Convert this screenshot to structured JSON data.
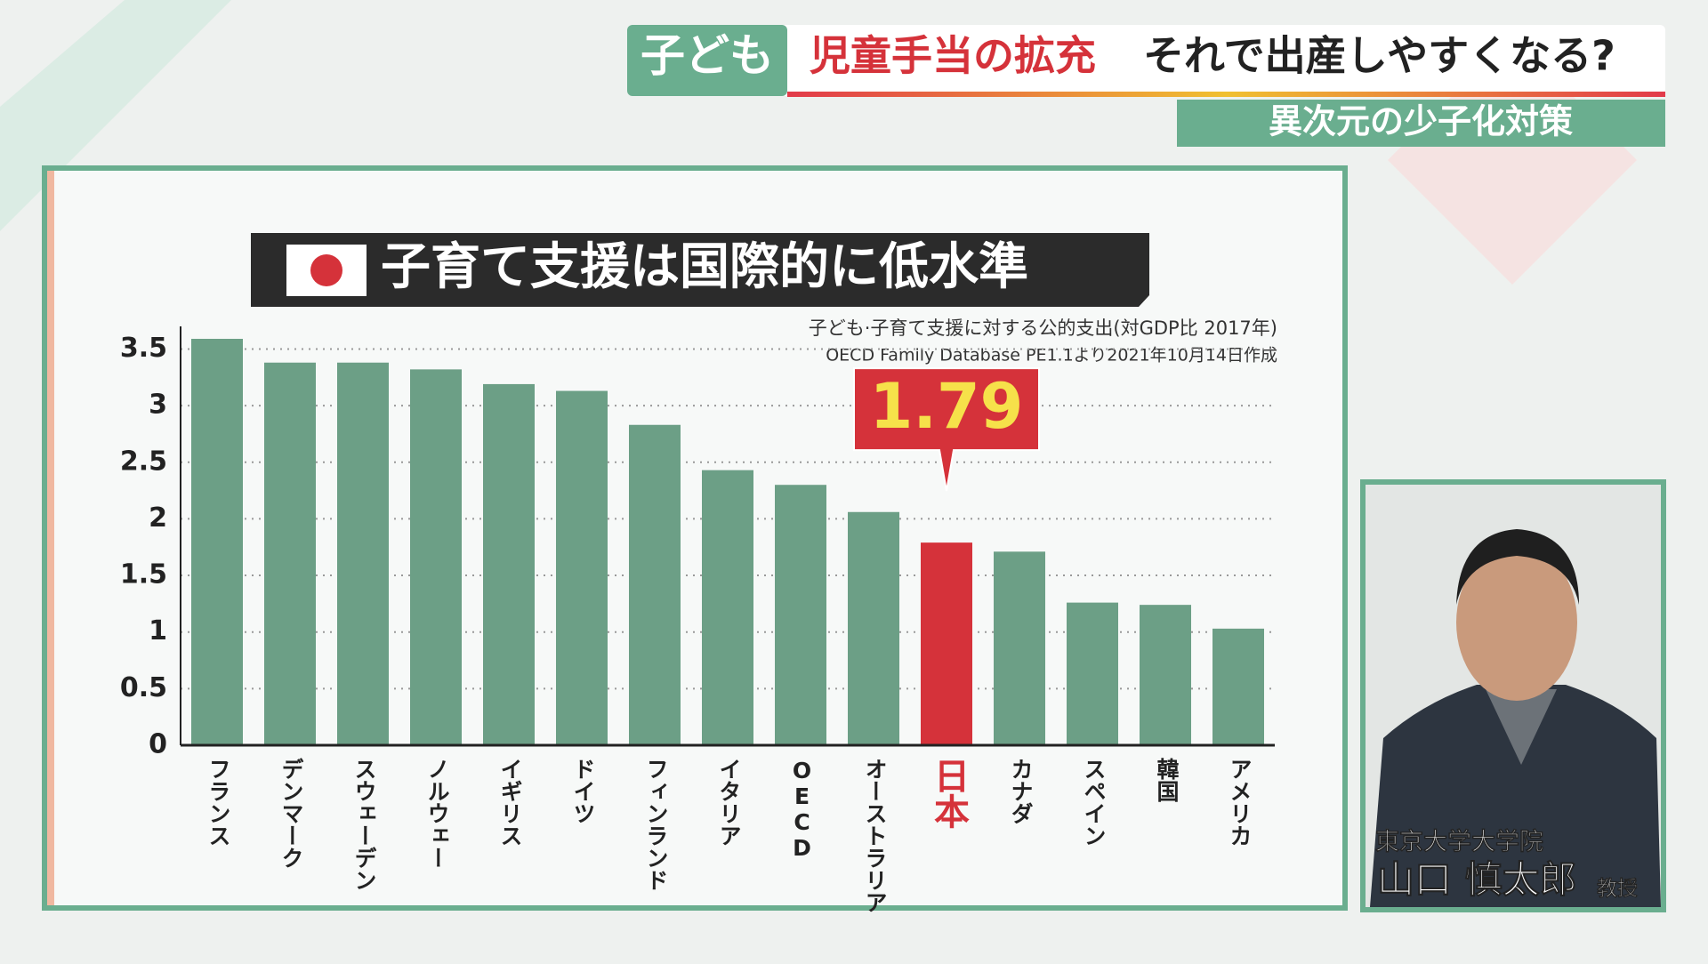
{
  "banner": {
    "tag": "子ども",
    "topic": "児童手当の拡充",
    "question": "それで出産しやすくなる?",
    "subtitle": "異次元の少子化対策"
  },
  "caption": {
    "affiliation": "東京大学大学院",
    "name": "山口 慎太郎",
    "role": "教授"
  },
  "chart_data": {
    "type": "bar",
    "title": "子育て支援は国際的に低水準",
    "subtitle": "子ども·子育て支援に対する公的支出(対GDP比 2017年)",
    "source": "OECD Family Database PE1.1より2021年10月14日作成",
    "categories": [
      "フランス",
      "デンマーク",
      "スウェーデン",
      "ノルウェー",
      "イギリス",
      "ドイツ",
      "フィンランド",
      "イタリア",
      "OECD",
      "オーストラリア",
      "日本",
      "カナダ",
      "スペイン",
      "韓国",
      "アメリカ"
    ],
    "values": [
      3.59,
      3.38,
      3.38,
      3.32,
      3.19,
      3.13,
      2.83,
      2.43,
      2.3,
      2.06,
      1.79,
      1.71,
      1.26,
      1.24,
      1.03
    ],
    "value_labels": [
      null,
      null,
      null,
      null,
      null,
      null,
      null,
      null,
      null,
      null,
      "1.79",
      null,
      null,
      null,
      null
    ],
    "colors": [
      "#6c9f86",
      "#6c9f86",
      "#6c9f86",
      "#6c9f86",
      "#6c9f86",
      "#6c9f86",
      "#6c9f86",
      "#6c9f86",
      "#6c9f86",
      "#6c9f86",
      "#d5323a",
      "#6c9f86",
      "#6c9f86",
      "#6c9f86",
      "#6c9f86"
    ],
    "highlight_color": "#d5323a",
    "ylim": [
      0,
      3.7
    ],
    "yticks": [
      0,
      0.5,
      1,
      1.5,
      2,
      2.5,
      3,
      3.5
    ],
    "grid": true
  }
}
